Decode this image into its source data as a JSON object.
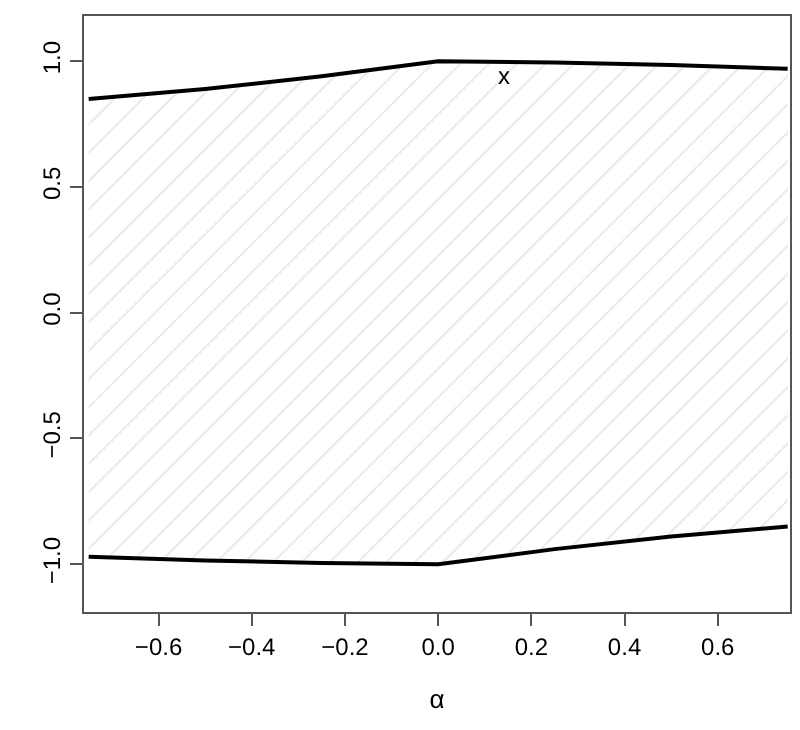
{
  "chart_data": {
    "type": "line",
    "xlabel": "α",
    "x": [
      -0.75,
      -0.5,
      -0.25,
      0,
      0.25,
      0.5,
      0.75
    ],
    "series": [
      {
        "color": "#000000",
        "values": [
          0.85,
          0.89,
          0.94,
          1.0,
          0.995,
          0.985,
          0.97
        ]
      },
      {
        "color": "#000000",
        "values": [
          -0.97,
          -0.985,
          -0.995,
          -1.0,
          -0.94,
          -0.89,
          -0.85
        ],
        "lower": [
          -0.97,
          -0.985,
          -0.995,
          -1.0,
          -0.94,
          -0.89,
          -0.85
        ],
        "upper": [
          0.85,
          0.89,
          0.94,
          1.0,
          0.995,
          0.985,
          0.97
        ]
      }
    ],
    "annotations": [
      "x"
    ],
    "xlim": [
      -0.76,
      0.755
    ],
    "ylim": [
      -1.19,
      1.18
    ],
    "xticks": [
      {
        "value": -0.6,
        "label": "−0.6"
      },
      {
        "value": -0.4,
        "label": "−0.4"
      },
      {
        "value": -0.2,
        "label": "−0.2"
      },
      {
        "value": 0,
        "label": "0.0"
      },
      {
        "value": 0.2,
        "label": "0.2"
      },
      {
        "value": 0.4,
        "label": "0.4"
      },
      {
        "value": 0.6,
        "label": "0.6"
      }
    ],
    "yticks": [
      {
        "value": -1,
        "label": "−1.0"
      },
      {
        "value": -0.5,
        "label": "−0.5"
      },
      {
        "value": 0,
        "label": "0.0"
      },
      {
        "value": 0.5,
        "label": "0.5"
      },
      {
        "value": 1,
        "label": "1.0"
      }
    ]
  }
}
